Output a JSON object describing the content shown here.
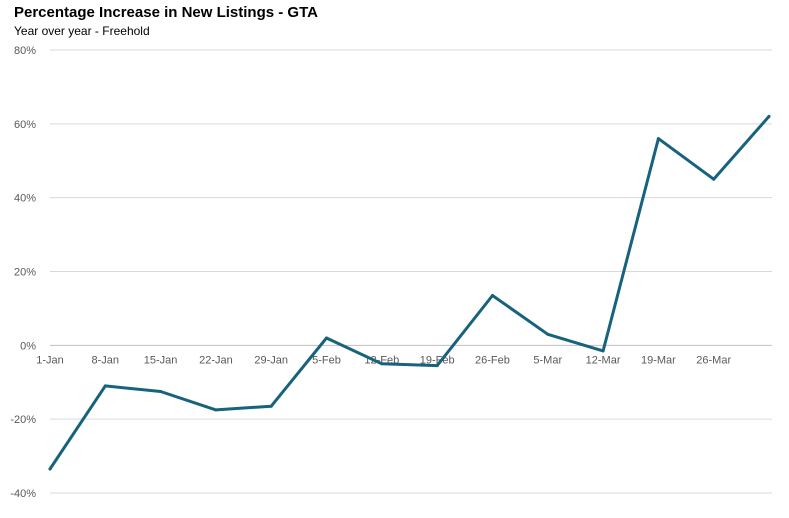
{
  "chart_data": {
    "type": "line",
    "title": "Percentage Increase in New Listings - GTA",
    "subtitle": "Year over year - Freehold",
    "xlabel": "",
    "ylabel": "",
    "categories": [
      "1-Jan",
      "8-Jan",
      "15-Jan",
      "22-Jan",
      "29-Jan",
      "5-Feb",
      "12-Feb",
      "19-Feb",
      "26-Feb",
      "5-Mar",
      "12-Mar",
      "19-Mar",
      "26-Mar",
      ""
    ],
    "series": [
      {
        "values": [
          -33.5,
          -11,
          -12.5,
          -17.5,
          -16.5,
          2,
          -5,
          -5.5,
          13.5,
          3,
          -1.5,
          56,
          45,
          62
        ]
      }
    ],
    "ylim": [
      -40,
      80
    ],
    "yticks": [
      -40,
      -20,
      0,
      20,
      40,
      60,
      80
    ],
    "ytick_labels": [
      "-40%",
      "-20%",
      "0%",
      "20%",
      "40%",
      "60%",
      "80%"
    ],
    "grid": true,
    "legend": "none",
    "colors": {
      "line": "#17627D",
      "grid": "#D9D9D9",
      "axis": "#BFBFBF",
      "text": "#595959"
    }
  }
}
